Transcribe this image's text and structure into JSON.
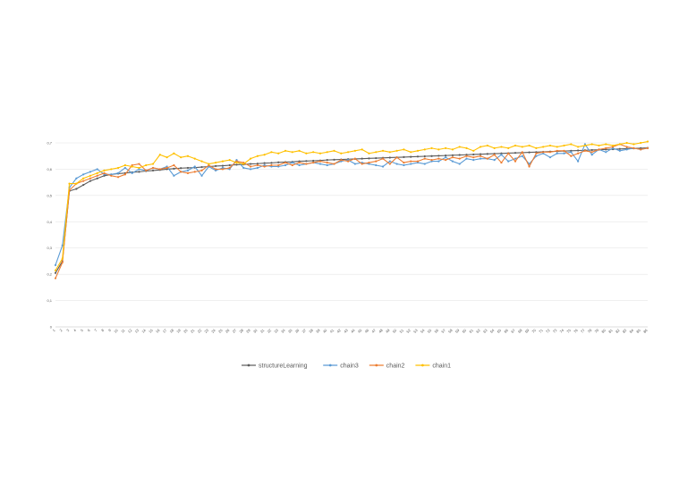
{
  "chart_data": {
    "type": "line",
    "title": "",
    "xlabel": "",
    "ylabel": "",
    "ylim": [
      0,
      0.7
    ],
    "yticks": [
      0,
      0.1,
      0.2,
      0.3,
      0.4,
      0.5,
      0.6,
      0.7
    ],
    "ytick_labels": [
      "0",
      "0,1",
      "0,2",
      "0,3",
      "0,4",
      "0,5",
      "0,6",
      "0,7"
    ],
    "grid": true,
    "legend_position": "bottom",
    "categories": [
      "1",
      "2",
      "3",
      "4",
      "5",
      "6",
      "7",
      "8",
      "9",
      "10",
      "11",
      "12",
      "13",
      "14",
      "15",
      "16",
      "17",
      "18",
      "19",
      "20",
      "21",
      "22",
      "23",
      "24",
      "25",
      "26",
      "27",
      "28",
      "29",
      "30",
      "31",
      "32",
      "33",
      "34",
      "35",
      "36",
      "37",
      "38",
      "39",
      "40",
      "41",
      "42",
      "43",
      "44",
      "45",
      "46",
      "47",
      "48",
      "49",
      "50",
      "51",
      "52",
      "53",
      "54",
      "55",
      "56",
      "57",
      "58",
      "59",
      "60",
      "61",
      "62",
      "63",
      "64",
      "65",
      "66",
      "67",
      "68",
      "69",
      "70",
      "71",
      "72",
      "73",
      "74",
      "75",
      "76",
      "77",
      "78",
      "79",
      "80",
      "81",
      "82",
      "83",
      "84",
      "85",
      "86"
    ],
    "series": [
      {
        "name": "structureLearning",
        "color": "#5b5b5b",
        "values": [
          0.205,
          0.25,
          0.517,
          0.525,
          0.54,
          0.555,
          0.565,
          0.575,
          0.58,
          0.583,
          0.585,
          0.588,
          0.59,
          0.593,
          0.595,
          0.597,
          0.6,
          0.602,
          0.604,
          0.605,
          0.606,
          0.608,
          0.61,
          0.612,
          0.613,
          0.615,
          0.617,
          0.618,
          0.62,
          0.621,
          0.623,
          0.624,
          0.626,
          0.627,
          0.628,
          0.63,
          0.631,
          0.632,
          0.633,
          0.635,
          0.636,
          0.637,
          0.638,
          0.639,
          0.64,
          0.641,
          0.642,
          0.643,
          0.644,
          0.645,
          0.646,
          0.647,
          0.648,
          0.649,
          0.65,
          0.651,
          0.652,
          0.653,
          0.654,
          0.655,
          0.656,
          0.657,
          0.658,
          0.659,
          0.66,
          0.661,
          0.662,
          0.663,
          0.664,
          0.665,
          0.666,
          0.667,
          0.668,
          0.669,
          0.67,
          0.671,
          0.672,
          0.673,
          0.674,
          0.675,
          0.676,
          0.677,
          0.678,
          0.679,
          0.68,
          0.681
        ]
      },
      {
        "name": "chain3",
        "color": "#5b9bd5",
        "values": [
          0.235,
          0.31,
          0.53,
          0.565,
          0.58,
          0.59,
          0.6,
          0.58,
          0.58,
          0.585,
          0.605,
          0.585,
          0.6,
          0.595,
          0.605,
          0.6,
          0.61,
          0.575,
          0.59,
          0.595,
          0.61,
          0.575,
          0.61,
          0.595,
          0.605,
          0.6,
          0.635,
          0.605,
          0.6,
          0.605,
          0.615,
          0.61,
          0.61,
          0.615,
          0.625,
          0.615,
          0.62,
          0.625,
          0.62,
          0.615,
          0.62,
          0.63,
          0.635,
          0.62,
          0.625,
          0.62,
          0.615,
          0.61,
          0.63,
          0.62,
          0.615,
          0.62,
          0.625,
          0.62,
          0.63,
          0.63,
          0.645,
          0.63,
          0.62,
          0.64,
          0.635,
          0.64,
          0.64,
          0.635,
          0.655,
          0.63,
          0.64,
          0.65,
          0.62,
          0.65,
          0.66,
          0.645,
          0.66,
          0.66,
          0.665,
          0.63,
          0.695,
          0.655,
          0.675,
          0.665,
          0.68,
          0.67,
          0.675,
          0.68,
          0.675,
          0.68
        ]
      },
      {
        "name": "chain2",
        "color": "#ed7d31",
        "values": [
          0.185,
          0.245,
          0.52,
          0.545,
          0.555,
          0.565,
          0.575,
          0.585,
          0.575,
          0.57,
          0.58,
          0.615,
          0.62,
          0.595,
          0.605,
          0.6,
          0.605,
          0.615,
          0.59,
          0.585,
          0.59,
          0.595,
          0.615,
          0.6,
          0.6,
          0.605,
          0.63,
          0.625,
          0.61,
          0.615,
          0.61,
          0.615,
          0.615,
          0.625,
          0.615,
          0.625,
          0.62,
          0.625,
          0.63,
          0.625,
          0.62,
          0.635,
          0.63,
          0.64,
          0.62,
          0.625,
          0.63,
          0.64,
          0.62,
          0.645,
          0.625,
          0.63,
          0.63,
          0.64,
          0.635,
          0.64,
          0.635,
          0.645,
          0.64,
          0.65,
          0.645,
          0.65,
          0.64,
          0.655,
          0.625,
          0.66,
          0.63,
          0.665,
          0.61,
          0.66,
          0.665,
          0.665,
          0.67,
          0.67,
          0.65,
          0.66,
          0.67,
          0.665,
          0.675,
          0.68,
          0.685,
          0.695,
          0.685,
          0.68,
          0.675,
          0.68
        ]
      },
      {
        "name": "chain1",
        "color": "#ffc000",
        "values": [
          0.215,
          0.26,
          0.545,
          0.545,
          0.565,
          0.575,
          0.585,
          0.595,
          0.6,
          0.605,
          0.615,
          0.61,
          0.605,
          0.615,
          0.62,
          0.655,
          0.645,
          0.66,
          0.645,
          0.65,
          0.64,
          0.63,
          0.62,
          0.625,
          0.63,
          0.635,
          0.625,
          0.62,
          0.64,
          0.65,
          0.655,
          0.665,
          0.66,
          0.67,
          0.665,
          0.67,
          0.66,
          0.665,
          0.66,
          0.665,
          0.67,
          0.66,
          0.665,
          0.67,
          0.675,
          0.66,
          0.665,
          0.67,
          0.665,
          0.67,
          0.675,
          0.665,
          0.67,
          0.675,
          0.68,
          0.675,
          0.68,
          0.675,
          0.685,
          0.68,
          0.67,
          0.685,
          0.69,
          0.68,
          0.685,
          0.68,
          0.69,
          0.685,
          0.69,
          0.68,
          0.685,
          0.69,
          0.685,
          0.69,
          0.695,
          0.685,
          0.69,
          0.695,
          0.69,
          0.695,
          0.69,
          0.695,
          0.7,
          0.695,
          0.7,
          0.705
        ]
      }
    ]
  }
}
